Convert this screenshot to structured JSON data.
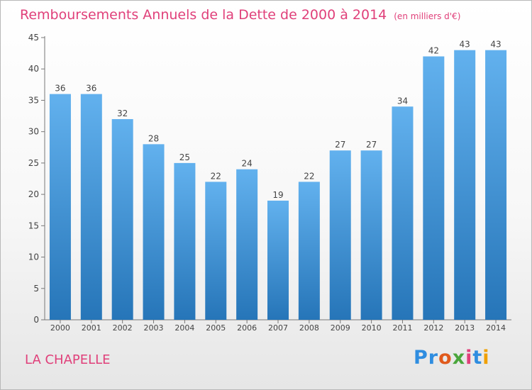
{
  "title": "Remboursements Annuels de la Dette de 2000 à 2014",
  "subtitle": "(en milliers d'€)",
  "place": "LA CHAPELLE",
  "logo_letters": [
    "P",
    "r",
    "o",
    "x",
    "i",
    "t",
    "i"
  ],
  "colors": {
    "title": "#e0407a",
    "bar_top": "#62b1ee",
    "bar_bottom": "#2675b8",
    "logo": [
      "#2f8de0",
      "#2f8de0",
      "#e05a1c",
      "#4aa63c",
      "#e0407a",
      "#2f8de0",
      "#f0a000"
    ]
  },
  "chart_data": {
    "type": "bar",
    "categories": [
      "2000",
      "2001",
      "2002",
      "2003",
      "2004",
      "2005",
      "2006",
      "2007",
      "2008",
      "2009",
      "2010",
      "2011",
      "2012",
      "2013",
      "2014"
    ],
    "values": [
      36,
      36,
      32,
      28,
      25,
      22,
      24,
      19,
      22,
      27,
      27,
      34,
      42,
      43,
      43
    ],
    "data_labels": [
      "36",
      "36",
      "32",
      "28",
      "25",
      "22",
      "24",
      "19",
      "22",
      "27",
      "27",
      "34",
      "42",
      "43",
      "43"
    ],
    "ylim": [
      0,
      45
    ],
    "yticks": [
      0,
      5,
      10,
      15,
      20,
      25,
      30,
      35,
      40,
      45
    ],
    "grid": false,
    "xlabel": "",
    "ylabel": ""
  }
}
